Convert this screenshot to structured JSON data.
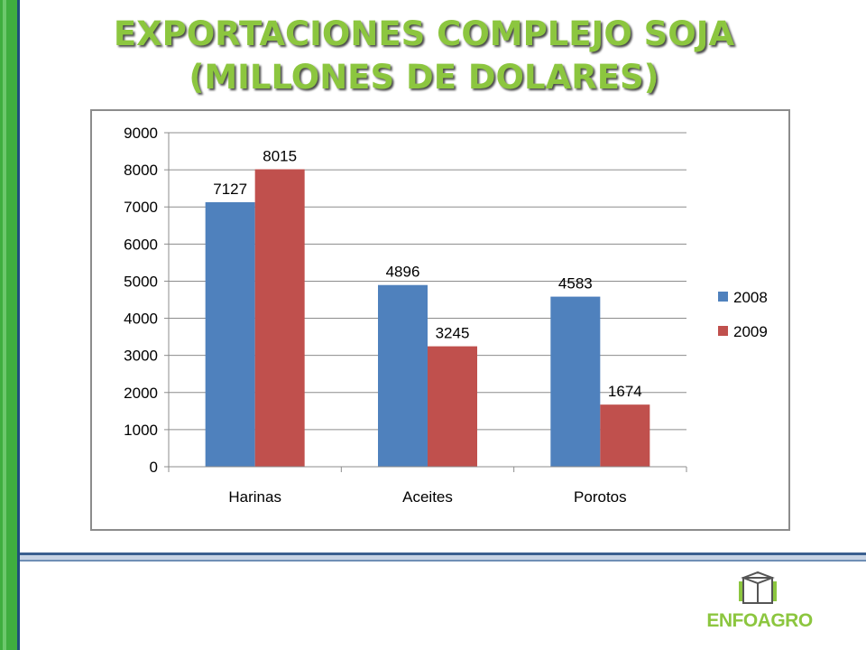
{
  "slide": {
    "title_line1": "EXPORTACIONES COMPLEJO SOJA",
    "title_line2": "(MILLONES DE DOLARES)",
    "logo_text": "ENFOAGRO",
    "colors": {
      "title": "#8cc63f",
      "side_bar": "#3fae3f",
      "rule": "#3a5f8f"
    }
  },
  "chart_data": {
    "type": "bar",
    "categories": [
      "Harinas",
      "Aceites",
      "Porotos"
    ],
    "series": [
      {
        "name": "2008",
        "values": [
          7127,
          4896,
          4583
        ],
        "color": "#4f81bd"
      },
      {
        "name": "2009",
        "values": [
          8015,
          3245,
          1674
        ],
        "color": "#c0504d"
      }
    ],
    "ylim": [
      0,
      9000
    ],
    "yticks": [
      0,
      1000,
      2000,
      3000,
      4000,
      5000,
      6000,
      7000,
      8000,
      9000
    ],
    "grid": true,
    "legend": "right",
    "data_labels": true
  }
}
